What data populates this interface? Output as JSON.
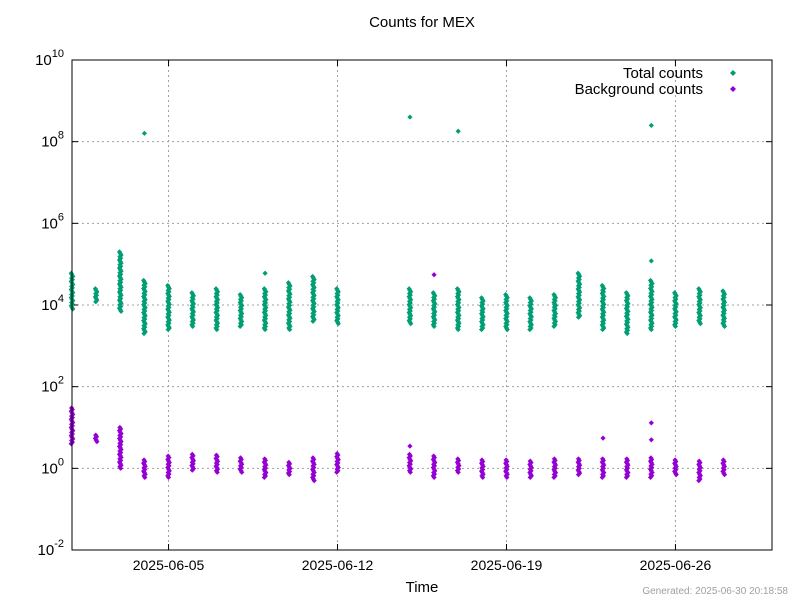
{
  "footer": {
    "generated": "Generated: 2025-06-30 20:18:58"
  },
  "chart_data": {
    "type": "scatter",
    "title": "Counts for MEX",
    "xlabel": "Time",
    "ylabel": "",
    "yscale": "log",
    "ylim": [
      0.01,
      10000000000
    ],
    "xlim": [
      "2025-06-01T00:00",
      "2025-06-30T00:00"
    ],
    "xticks": [
      "2025-06-05",
      "2025-06-12",
      "2025-06-19",
      "2025-06-26"
    ],
    "yticks": [
      {
        "base": "10",
        "exp": "-2"
      },
      {
        "base": "10",
        "exp": "0"
      },
      {
        "base": "10",
        "exp": "2"
      },
      {
        "base": "10",
        "exp": "4"
      },
      {
        "base": "10",
        "exp": "6"
      },
      {
        "base": "10",
        "exp": "8"
      },
      {
        "base": "10",
        "exp": "10"
      }
    ],
    "grid": true,
    "legend_position": "top-right",
    "series": [
      {
        "name": "Total counts",
        "color": "#009e73",
        "clusters": [
          {
            "x": "2025-06-01T00:00",
            "min": 8000,
            "max": 60000
          },
          {
            "x": "2025-06-02T00:00",
            "min": 12000,
            "max": 25000
          },
          {
            "x": "2025-06-03T00:00",
            "min": 7000,
            "max": 200000
          },
          {
            "x": "2025-06-04T00:00",
            "min": 2000,
            "max": 40000
          },
          {
            "x": "2025-06-05T00:00",
            "min": 2500,
            "max": 30000
          },
          {
            "x": "2025-06-06T00:00",
            "min": 3000,
            "max": 20000
          },
          {
            "x": "2025-06-07T00:00",
            "min": 2500,
            "max": 25000
          },
          {
            "x": "2025-06-08T00:00",
            "min": 3000,
            "max": 18000
          },
          {
            "x": "2025-06-09T00:00",
            "min": 2500,
            "max": 25000
          },
          {
            "x": "2025-06-10T00:00",
            "min": 2500,
            "max": 35000
          },
          {
            "x": "2025-06-11T00:00",
            "min": 4000,
            "max": 50000
          },
          {
            "x": "2025-06-12T00:00",
            "min": 3500,
            "max": 25000
          },
          {
            "x": "2025-06-15T00:00",
            "min": 3500,
            "max": 25000
          },
          {
            "x": "2025-06-16T00:00",
            "min": 3000,
            "max": 20000
          },
          {
            "x": "2025-06-17T00:00",
            "min": 2500,
            "max": 25000
          },
          {
            "x": "2025-06-18T00:00",
            "min": 2500,
            "max": 15000
          },
          {
            "x": "2025-06-19T00:00",
            "min": 2500,
            "max": 18000
          },
          {
            "x": "2025-06-20T00:00",
            "min": 2500,
            "max": 15000
          },
          {
            "x": "2025-06-21T00:00",
            "min": 3000,
            "max": 18000
          },
          {
            "x": "2025-06-22T00:00",
            "min": 5000,
            "max": 60000
          },
          {
            "x": "2025-06-23T00:00",
            "min": 2500,
            "max": 30000
          },
          {
            "x": "2025-06-24T00:00",
            "min": 2000,
            "max": 20000
          },
          {
            "x": "2025-06-25T00:00",
            "min": 2500,
            "max": 40000
          },
          {
            "x": "2025-06-26T00:00",
            "min": 3000,
            "max": 20000
          },
          {
            "x": "2025-06-27T00:00",
            "min": 3500,
            "max": 25000
          },
          {
            "x": "2025-06-28T00:00",
            "min": 3000,
            "max": 22000
          }
        ],
        "outliers": [
          {
            "x": "2025-06-04T00:00",
            "y": 160000000
          },
          {
            "x": "2025-06-09T00:00",
            "y": 60000
          },
          {
            "x": "2025-06-15T00:00",
            "y": 400000000
          },
          {
            "x": "2025-06-17T00:00",
            "y": 180000000
          },
          {
            "x": "2025-06-25T00:00",
            "y": 250000000
          },
          {
            "x": "2025-06-25T00:00",
            "y": 120000
          }
        ]
      },
      {
        "name": "Background counts",
        "color": "#9400d3",
        "clusters": [
          {
            "x": "2025-06-01T00:00",
            "min": 4,
            "max": 30
          },
          {
            "x": "2025-06-02T00:00",
            "min": 4.5,
            "max": 6.5
          },
          {
            "x": "2025-06-03T00:00",
            "min": 1,
            "max": 10
          },
          {
            "x": "2025-06-04T00:00",
            "min": 0.6,
            "max": 1.6
          },
          {
            "x": "2025-06-05T00:00",
            "min": 0.6,
            "max": 2
          },
          {
            "x": "2025-06-06T00:00",
            "min": 0.9,
            "max": 2.2
          },
          {
            "x": "2025-06-07T00:00",
            "min": 0.8,
            "max": 2.1
          },
          {
            "x": "2025-06-08T00:00",
            "min": 0.8,
            "max": 1.8
          },
          {
            "x": "2025-06-09T00:00",
            "min": 0.6,
            "max": 1.7
          },
          {
            "x": "2025-06-10T00:00",
            "min": 0.7,
            "max": 1.4
          },
          {
            "x": "2025-06-11T00:00",
            "min": 0.5,
            "max": 1.8
          },
          {
            "x": "2025-06-12T00:00",
            "min": 0.8,
            "max": 2.3
          },
          {
            "x": "2025-06-15T00:00",
            "min": 0.8,
            "max": 2.2
          },
          {
            "x": "2025-06-16T00:00",
            "min": 0.6,
            "max": 2
          },
          {
            "x": "2025-06-17T00:00",
            "min": 0.8,
            "max": 1.7
          },
          {
            "x": "2025-06-18T00:00",
            "min": 0.6,
            "max": 1.6
          },
          {
            "x": "2025-06-19T00:00",
            "min": 0.6,
            "max": 1.6
          },
          {
            "x": "2025-06-20T00:00",
            "min": 0.6,
            "max": 1.5
          },
          {
            "x": "2025-06-21T00:00",
            "min": 0.6,
            "max": 1.7
          },
          {
            "x": "2025-06-22T00:00",
            "min": 0.7,
            "max": 1.7
          },
          {
            "x": "2025-06-23T00:00",
            "min": 0.6,
            "max": 1.7
          },
          {
            "x": "2025-06-24T00:00",
            "min": 0.6,
            "max": 1.7
          },
          {
            "x": "2025-06-25T00:00",
            "min": 0.6,
            "max": 1.8
          },
          {
            "x": "2025-06-26T00:00",
            "min": 0.7,
            "max": 1.6
          },
          {
            "x": "2025-06-27T00:00",
            "min": 0.5,
            "max": 1.5
          },
          {
            "x": "2025-06-28T00:00",
            "min": 0.7,
            "max": 1.6
          }
        ],
        "outliers": [
          {
            "x": "2025-06-15T00:00",
            "y": 3.5
          },
          {
            "x": "2025-06-16T00:00",
            "y": 55000
          },
          {
            "x": "2025-06-23T00:00",
            "y": 5.5
          },
          {
            "x": "2025-06-25T00:00",
            "y": 13
          },
          {
            "x": "2025-06-25T00:00",
            "y": 5
          }
        ]
      }
    ]
  }
}
